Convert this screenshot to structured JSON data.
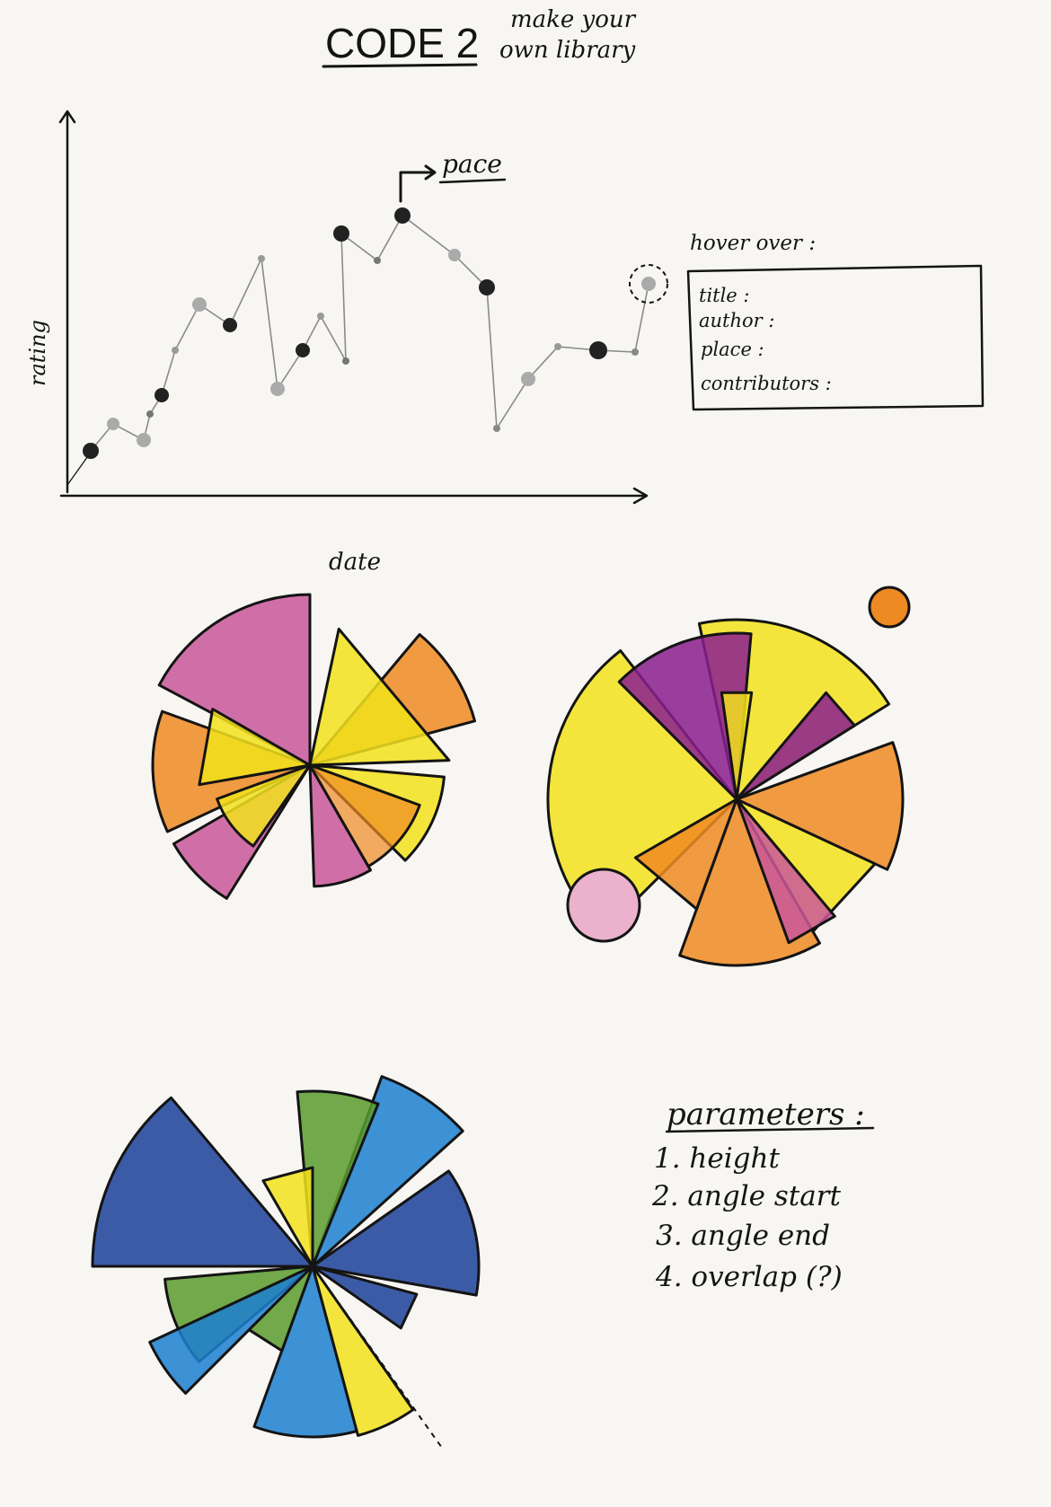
{
  "header": {
    "title": "CODE 2",
    "subtitle_line1": "make your",
    "subtitle_line2": "own library"
  },
  "timeline_sketch": {
    "y_label": "rating",
    "x_label": "date",
    "pace_label": "pace"
  },
  "hover_box": {
    "heading": "hover over :",
    "fields": [
      "title :",
      "author :",
      "place :",
      "contributors :"
    ]
  },
  "parameters": {
    "heading": "parameters :",
    "items": [
      "1. height",
      "2. angle start",
      "3. angle end",
      "4. overlap (?)"
    ]
  },
  "colors": {
    "ink": "#141414",
    "paper": "#f7f6f2",
    "magenta": "#c9579a",
    "orange": "#ee8a22",
    "yellow": "#f2e21c",
    "purple": "#8a1d8f",
    "pink": "#ecb1cc",
    "navy": "#1b3f9a",
    "blue": "#1c7fd0",
    "green": "#5b9b2e"
  }
}
